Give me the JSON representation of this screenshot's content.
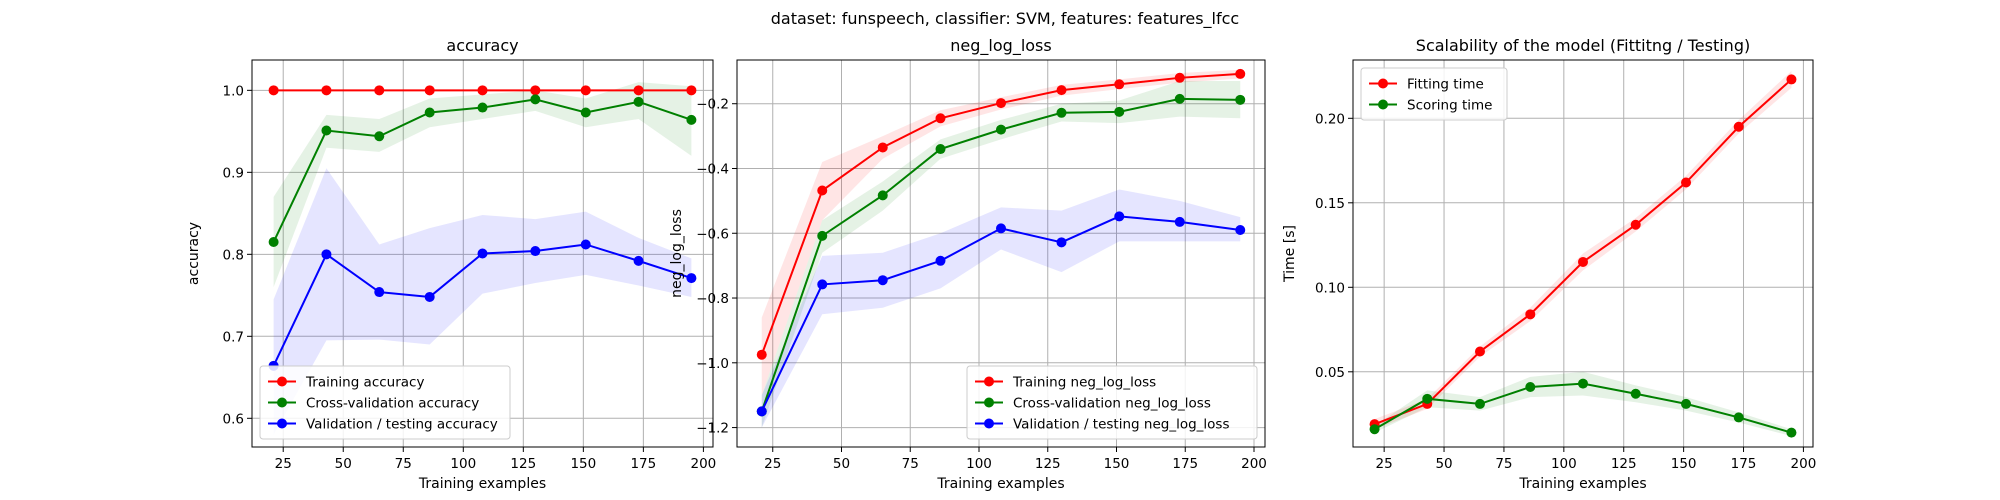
{
  "suptitle": "dataset: funspeech, classifier: SVM, features: features_lfcc",
  "colors": {
    "training": "#ff0000",
    "cross_validation": "#008000",
    "validation": "#0000ff",
    "grid": "#b0b0b0",
    "axes": "#000000"
  },
  "chart_data": [
    {
      "type": "line",
      "title": "accuracy",
      "xlabel": "Training examples",
      "ylabel": "accuracy",
      "xlim": [
        12,
        204
      ],
      "ylim": [
        0.565,
        1.037
      ],
      "xticks": [
        25,
        50,
        75,
        100,
        125,
        150,
        175,
        200
      ],
      "yticks": [
        0.6,
        0.7,
        0.8,
        0.9,
        1.0
      ],
      "ytick_labels": [
        "0.6",
        "0.7",
        "0.8",
        "0.9",
        "1.0"
      ],
      "grid": true,
      "legend_position": "lower-left",
      "x": [
        21,
        43,
        65,
        86,
        108,
        130,
        151,
        173,
        195
      ],
      "series": [
        {
          "name": "Training accuracy",
          "color": "#ff0000",
          "values": [
            1.0,
            1.0,
            1.0,
            1.0,
            1.0,
            1.0,
            1.0,
            1.0,
            1.0
          ],
          "band_low": [
            1.0,
            1.0,
            1.0,
            1.0,
            1.0,
            1.0,
            1.0,
            1.0,
            1.0
          ],
          "band_high": [
            1.0,
            1.0,
            1.0,
            1.0,
            1.0,
            1.0,
            1.0,
            1.0,
            1.0
          ]
        },
        {
          "name": "Cross-validation accuracy",
          "color": "#008000",
          "values": [
            0.815,
            0.951,
            0.944,
            0.973,
            0.979,
            0.989,
            0.973,
            0.986,
            0.964
          ],
          "band_low": [
            0.76,
            0.93,
            0.925,
            0.955,
            0.965,
            0.975,
            0.955,
            0.965,
            0.92
          ],
          "band_high": [
            0.87,
            0.97,
            0.965,
            0.99,
            0.995,
            1.0,
            0.99,
            1.01,
            1.005
          ]
        },
        {
          "name": "Validation / testing accuracy",
          "color": "#0000ff",
          "values": [
            0.664,
            0.8,
            0.754,
            0.748,
            0.801,
            0.804,
            0.812,
            0.792,
            0.771
          ],
          "band_low": [
            0.58,
            0.695,
            0.696,
            0.69,
            0.752,
            0.765,
            0.775,
            0.762,
            0.748
          ],
          "band_high": [
            0.745,
            0.905,
            0.812,
            0.832,
            0.848,
            0.843,
            0.852,
            0.82,
            0.795
          ]
        }
      ]
    },
    {
      "type": "line",
      "title": "neg_log_loss",
      "xlabel": "Training examples",
      "ylabel": "neg_log_loss",
      "xlim": [
        12,
        204
      ],
      "ylim": [
        -1.26,
        -0.065
      ],
      "xticks": [
        25,
        50,
        75,
        100,
        125,
        150,
        175,
        200
      ],
      "yticks": [
        -1.2,
        -1.0,
        -0.8,
        -0.6,
        -0.4,
        -0.2
      ],
      "ytick_labels": [
        "−1.2",
        "−1.0",
        "−0.8",
        "−0.6",
        "−0.4",
        "−0.2"
      ],
      "grid": true,
      "legend_position": "lower-right",
      "x": [
        21,
        43,
        65,
        86,
        108,
        130,
        151,
        173,
        195
      ],
      "series": [
        {
          "name": "Training neg_log_loss",
          "color": "#ff0000",
          "values": [
            -0.975,
            -0.468,
            -0.335,
            -0.245,
            -0.198,
            -0.158,
            -0.14,
            -0.12,
            -0.108
          ],
          "band_low": [
            -1.1,
            -0.56,
            -0.37,
            -0.27,
            -0.218,
            -0.175,
            -0.155,
            -0.135,
            -0.122
          ],
          "band_high": [
            -0.86,
            -0.38,
            -0.3,
            -0.22,
            -0.18,
            -0.142,
            -0.125,
            -0.105,
            -0.095
          ]
        },
        {
          "name": "Cross-validation neg_log_loss",
          "color": "#008000",
          "values": [
            -1.15,
            -0.608,
            -0.483,
            -0.34,
            -0.28,
            -0.228,
            -0.225,
            -0.185,
            -0.188
          ],
          "band_low": [
            -1.2,
            -0.66,
            -0.53,
            -0.37,
            -0.31,
            -0.255,
            -0.26,
            -0.24,
            -0.245
          ],
          "band_high": [
            -1.1,
            -0.56,
            -0.44,
            -0.31,
            -0.25,
            -0.2,
            -0.19,
            -0.13,
            -0.13
          ]
        },
        {
          "name": "Validation / testing neg_log_loss",
          "color": "#0000ff",
          "values": [
            -1.15,
            -0.758,
            -0.745,
            -0.685,
            -0.585,
            -0.628,
            -0.548,
            -0.565,
            -0.59
          ],
          "band_low": [
            -1.2,
            -0.85,
            -0.83,
            -0.77,
            -0.65,
            -0.72,
            -0.625,
            -0.625,
            -0.625
          ],
          "band_high": [
            -1.1,
            -0.67,
            -0.66,
            -0.6,
            -0.52,
            -0.53,
            -0.465,
            -0.5,
            -0.55
          ]
        }
      ]
    },
    {
      "type": "line",
      "title": "Scalability of the model (Fittitng / Testing)",
      "xlabel": "Training examples",
      "ylabel": "Time [s]",
      "xlim": [
        12,
        204
      ],
      "ylim": [
        0.0055,
        0.2345
      ],
      "xticks": [
        25,
        50,
        75,
        100,
        125,
        150,
        175,
        200
      ],
      "yticks": [
        0.05,
        0.1,
        0.15,
        0.2
      ],
      "ytick_labels": [
        "0.05",
        "0.10",
        "0.15",
        "0.20"
      ],
      "grid": true,
      "legend_position": "upper-left",
      "x": [
        21,
        43,
        65,
        86,
        108,
        130,
        151,
        173,
        195
      ],
      "series": [
        {
          "name": "Fitting time",
          "color": "#ff0000",
          "values": [
            0.019,
            0.031,
            0.062,
            0.084,
            0.115,
            0.137,
            0.162,
            0.195,
            0.223
          ],
          "band_low": [
            0.016,
            0.028,
            0.059,
            0.08,
            0.11,
            0.133,
            0.158,
            0.191,
            0.218
          ],
          "band_high": [
            0.022,
            0.034,
            0.065,
            0.088,
            0.12,
            0.141,
            0.166,
            0.199,
            0.228
          ]
        },
        {
          "name": "Scoring time",
          "color": "#008000",
          "values": [
            0.016,
            0.034,
            0.031,
            0.041,
            0.043,
            0.037,
            0.031,
            0.023,
            0.014
          ],
          "band_low": [
            0.014,
            0.029,
            0.027,
            0.035,
            0.036,
            0.032,
            0.027,
            0.02,
            0.012
          ],
          "band_high": [
            0.018,
            0.039,
            0.035,
            0.047,
            0.05,
            0.042,
            0.035,
            0.026,
            0.016
          ]
        }
      ]
    }
  ]
}
